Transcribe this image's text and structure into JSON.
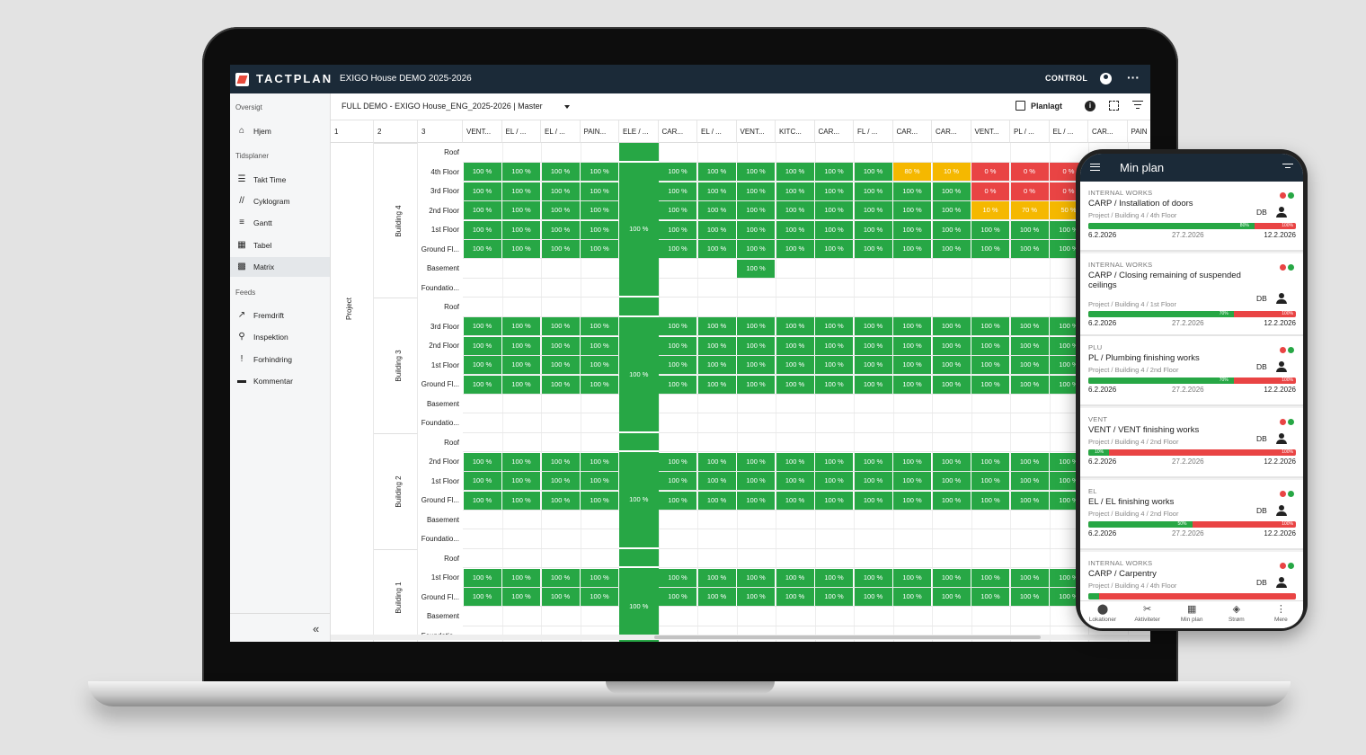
{
  "app": {
    "brand": "TACTPLAN",
    "project_title": "EXIGO House DEMO 2025-2026",
    "control_label": "CONTROL",
    "view_title": "FULL DEMO - EXIGO House_ENG_2025-2026  |  Master",
    "planlagt_label": "Planlagt"
  },
  "sidebar": {
    "sections": [
      {
        "title": "Oversigt",
        "items": [
          {
            "label": "Hjem",
            "icon": "home-icon"
          }
        ]
      },
      {
        "title": "Tidsplaner",
        "items": [
          {
            "label": "Takt Time",
            "icon": "takt-time-icon"
          },
          {
            "label": "Cyklogram",
            "icon": "cyclogram-icon"
          },
          {
            "label": "Gantt",
            "icon": "gantt-icon"
          },
          {
            "label": "Tabel",
            "icon": "table-icon"
          },
          {
            "label": "Matrix",
            "icon": "matrix-icon",
            "active": true
          }
        ]
      },
      {
        "title": "Feeds",
        "items": [
          {
            "label": "Fremdrift",
            "icon": "trend-icon"
          },
          {
            "label": "Inspektion",
            "icon": "search-icon"
          },
          {
            "label": "Forhindring",
            "icon": "exclamation-icon"
          },
          {
            "label": "Kommentar",
            "icon": "comment-icon"
          }
        ]
      }
    ]
  },
  "matrix": {
    "level_headers": [
      "1",
      "2",
      "3"
    ],
    "activity_headers": [
      "VENT...",
      "EL / ...",
      "EL / ...",
      "PAIN...",
      "ELE / ...",
      "CAR...",
      "EL / ...",
      "VENT...",
      "KITC...",
      "CAR...",
      "FL / ...",
      "CAR...",
      "CAR...",
      "VENT...",
      "PL / ...",
      "EL / ...",
      "CAR...",
      "PAIN"
    ],
    "project_label": "Project",
    "merged_value": "100 %",
    "colors": {
      "green": "#27a745",
      "red": "#e94444",
      "yellow": "#f5b800"
    },
    "buildings": [
      {
        "name": "Building 4",
        "floors": [
          {
            "name": "Roof",
            "cells": []
          },
          {
            "name": "4th Floor",
            "cells": [
              "100 %",
              "100 %",
              "100 %",
              "100 %",
              "",
              "100 %",
              "100 %",
              "100 %",
              "100 %",
              "100 %",
              "100 %",
              "80 %",
              "10 %",
              "0 %",
              "0 %",
              "0 %"
            ],
            "states": [
              "g",
              "g",
              "g",
              "g",
              "",
              "g",
              "g",
              "g",
              "g",
              "g",
              "g",
              "y",
              "y",
              "r",
              "r",
              "r"
            ]
          },
          {
            "name": "3rd Floor",
            "cells": [
              "100 %",
              "100 %",
              "100 %",
              "100 %",
              "",
              "100 %",
              "100 %",
              "100 %",
              "100 %",
              "100 %",
              "100 %",
              "100 %",
              "100 %",
              "0 %",
              "0 %",
              "0 %"
            ],
            "states": [
              "g",
              "g",
              "g",
              "g",
              "",
              "g",
              "g",
              "g",
              "g",
              "g",
              "g",
              "g",
              "g",
              "r",
              "r",
              "r"
            ]
          },
          {
            "name": "2nd Floor",
            "cells": [
              "100 %",
              "100 %",
              "100 %",
              "100 %",
              "",
              "100 %",
              "100 %",
              "100 %",
              "100 %",
              "100 %",
              "100 %",
              "100 %",
              "100 %",
              "10 %",
              "70 %",
              "50 %"
            ],
            "states": [
              "g",
              "g",
              "g",
              "g",
              "",
              "g",
              "g",
              "g",
              "g",
              "g",
              "g",
              "g",
              "g",
              "y",
              "y",
              "y"
            ]
          },
          {
            "name": "1st Floor",
            "cells": [
              "100 %",
              "100 %",
              "100 %",
              "100 %",
              "",
              "100 %",
              "100 %",
              "100 %",
              "100 %",
              "100 %",
              "100 %",
              "100 %",
              "100 %",
              "100 %",
              "100 %",
              "100 %"
            ],
            "states": [
              "g",
              "g",
              "g",
              "g",
              "",
              "g",
              "g",
              "g",
              "g",
              "g",
              "g",
              "g",
              "g",
              "g",
              "g",
              "g"
            ]
          },
          {
            "name": "Ground Fl...",
            "cells": [
              "100 %",
              "100 %",
              "100 %",
              "100 %",
              "",
              "100 %",
              "100 %",
              "100 %",
              "100 %",
              "100 %",
              "100 %",
              "100 %",
              "100 %",
              "100 %",
              "100 %",
              "100 %"
            ],
            "states": [
              "g",
              "g",
              "g",
              "g",
              "",
              "g",
              "g",
              "g",
              "g",
              "g",
              "g",
              "g",
              "g",
              "g",
              "g",
              "g"
            ]
          },
          {
            "name": "Basement",
            "cells": [
              "",
              "",
              "",
              "",
              "",
              "",
              "",
              "100 %"
            ],
            "states": [
              "",
              "",
              "",
              "",
              "",
              "",
              "",
              "g"
            ]
          },
          {
            "name": "Foundatio...",
            "cells": []
          }
        ]
      },
      {
        "name": "Building 3",
        "floors": [
          {
            "name": "Roof",
            "cells": []
          },
          {
            "name": "3rd Floor",
            "cells": [
              "100 %",
              "100 %",
              "100 %",
              "100 %",
              "",
              "100 %",
              "100 %",
              "100 %",
              "100 %",
              "100 %",
              "100 %",
              "100 %",
              "100 %",
              "100 %",
              "100 %",
              "100 %"
            ],
            "states": [
              "g",
              "g",
              "g",
              "g",
              "",
              "g",
              "g",
              "g",
              "g",
              "g",
              "g",
              "g",
              "g",
              "g",
              "g",
              "g"
            ]
          },
          {
            "name": "2nd Floor",
            "cells": [
              "100 %",
              "100 %",
              "100 %",
              "100 %",
              "",
              "100 %",
              "100 %",
              "100 %",
              "100 %",
              "100 %",
              "100 %",
              "100 %",
              "100 %",
              "100 %",
              "100 %",
              "100 %"
            ],
            "states": [
              "g",
              "g",
              "g",
              "g",
              "",
              "g",
              "g",
              "g",
              "g",
              "g",
              "g",
              "g",
              "g",
              "g",
              "g",
              "g"
            ]
          },
          {
            "name": "1st Floor",
            "cells": [
              "100 %",
              "100 %",
              "100 %",
              "100 %",
              "",
              "100 %",
              "100 %",
              "100 %",
              "100 %",
              "100 %",
              "100 %",
              "100 %",
              "100 %",
              "100 %",
              "100 %",
              "100 %"
            ],
            "states": [
              "g",
              "g",
              "g",
              "g",
              "",
              "g",
              "g",
              "g",
              "g",
              "g",
              "g",
              "g",
              "g",
              "g",
              "g",
              "g"
            ]
          },
          {
            "name": "Ground Fl...",
            "cells": [
              "100 %",
              "100 %",
              "100 %",
              "100 %",
              "",
              "100 %",
              "100 %",
              "100 %",
              "100 %",
              "100 %",
              "100 %",
              "100 %",
              "100 %",
              "100 %",
              "100 %",
              "100 %"
            ],
            "states": [
              "g",
              "g",
              "g",
              "g",
              "",
              "g",
              "g",
              "g",
              "g",
              "g",
              "g",
              "g",
              "g",
              "g",
              "g",
              "g"
            ]
          },
          {
            "name": "Basement",
            "cells": []
          },
          {
            "name": "Foundatio...",
            "cells": []
          }
        ]
      },
      {
        "name": "Building 2",
        "floors": [
          {
            "name": "Roof",
            "cells": []
          },
          {
            "name": "2nd Floor",
            "cells": [
              "100 %",
              "100 %",
              "100 %",
              "100 %",
              "",
              "100 %",
              "100 %",
              "100 %",
              "100 %",
              "100 %",
              "100 %",
              "100 %",
              "100 %",
              "100 %",
              "100 %",
              "100 %"
            ],
            "states": [
              "g",
              "g",
              "g",
              "g",
              "",
              "g",
              "g",
              "g",
              "g",
              "g",
              "g",
              "g",
              "g",
              "g",
              "g",
              "g"
            ]
          },
          {
            "name": "1st Floor",
            "cells": [
              "100 %",
              "100 %",
              "100 %",
              "100 %",
              "",
              "100 %",
              "100 %",
              "100 %",
              "100 %",
              "100 %",
              "100 %",
              "100 %",
              "100 %",
              "100 %",
              "100 %",
              "100 %"
            ],
            "states": [
              "g",
              "g",
              "g",
              "g",
              "",
              "g",
              "g",
              "g",
              "g",
              "g",
              "g",
              "g",
              "g",
              "g",
              "g",
              "g"
            ]
          },
          {
            "name": "Ground Fl...",
            "cells": [
              "100 %",
              "100 %",
              "100 %",
              "100 %",
              "",
              "100 %",
              "100 %",
              "100 %",
              "100 %",
              "100 %",
              "100 %",
              "100 %",
              "100 %",
              "100 %",
              "100 %",
              "100 %"
            ],
            "states": [
              "g",
              "g",
              "g",
              "g",
              "",
              "g",
              "g",
              "g",
              "g",
              "g",
              "g",
              "g",
              "g",
              "g",
              "g",
              "g"
            ]
          },
          {
            "name": "Basement",
            "cells": []
          },
          {
            "name": "Foundatio...",
            "cells": []
          }
        ]
      },
      {
        "name": "Building 1",
        "floors": [
          {
            "name": "Roof",
            "cells": []
          },
          {
            "name": "1st Floor",
            "cells": [
              "100 %",
              "100 %",
              "100 %",
              "100 %",
              "",
              "100 %",
              "100 %",
              "100 %",
              "100 %",
              "100 %",
              "100 %",
              "100 %",
              "100 %",
              "100 %",
              "100 %",
              "100 %"
            ],
            "states": [
              "g",
              "g",
              "g",
              "g",
              "",
              "g",
              "g",
              "g",
              "g",
              "g",
              "g",
              "g",
              "g",
              "g",
              "g",
              "g"
            ]
          },
          {
            "name": "Ground Fl...",
            "cells": [
              "100 %",
              "100 %",
              "100 %",
              "100 %",
              "",
              "100 %",
              "100 %",
              "100 %",
              "100 %",
              "100 %",
              "100 %",
              "100 %",
              "100 %",
              "100 %",
              "100 %",
              "100 %"
            ],
            "states": [
              "g",
              "g",
              "g",
              "g",
              "",
              "g",
              "g",
              "g",
              "g",
              "g",
              "g",
              "g",
              "g",
              "g",
              "g",
              "g"
            ]
          },
          {
            "name": "Basement",
            "cells": []
          },
          {
            "name": "Foundatio...",
            "cells": []
          }
        ]
      }
    ]
  },
  "phone": {
    "title": "Min plan",
    "cards": [
      {
        "category": "INTERNAL WORKS",
        "title": "CARP / Installation of doors",
        "path": "Project / Building 4 / 4th Floor",
        "assignee": "DB",
        "progress": 0.8,
        "progress_label": "80%",
        "planned_label": "100%",
        "start": "6.2.2026",
        "mid": "27.2.2026",
        "end": "12.2.2026"
      },
      {
        "category": "INTERNAL WORKS",
        "title": "CARP / Closing remaining of suspended ceilings",
        "path": "Project / Building 4 / 1st Floor",
        "assignee": "DB",
        "progress": 0.7,
        "progress_label": "70%",
        "planned_label": "100%",
        "start": "6.2.2026",
        "mid": "27.2.2026",
        "end": "12.2.2026"
      },
      {
        "category": "PLU",
        "title": "PL / Plumbing finishing works",
        "path": "Project / Building 4 / 2nd Floor",
        "assignee": "DB",
        "progress": 0.7,
        "progress_label": "70%",
        "planned_label": "100%",
        "start": "6.2.2026",
        "mid": "27.2.2026",
        "end": "12.2.2026"
      },
      {
        "category": "VENT",
        "title": "VENT / VENT finishing works",
        "path": "Project / Building 4 / 2nd Floor",
        "assignee": "DB",
        "progress": 0.1,
        "progress_label": "10%",
        "planned_label": "100%",
        "start": "6.2.2026",
        "mid": "27.2.2026",
        "end": "12.2.2026"
      },
      {
        "category": "EL",
        "title": "EL / EL finishing works",
        "path": "Project / Building 4 / 2nd Floor",
        "assignee": "DB",
        "progress": 0.5,
        "progress_label": "50%",
        "planned_label": "100%",
        "start": "6.2.2026",
        "mid": "27.2.2026",
        "end": "12.2.2026"
      },
      {
        "category": "INTERNAL WORKS",
        "title": "CARP / Carpentry",
        "path": "Project / Building 4 / 4th Floor",
        "assignee": "DB",
        "progress": 0.05,
        "progress_label": "",
        "planned_label": "",
        "start": "",
        "mid": "",
        "end": ""
      }
    ],
    "nav": [
      {
        "label": "Lokationer",
        "icon": "pin-icon"
      },
      {
        "label": "Aktiviteter",
        "icon": "tools-icon"
      },
      {
        "label": "Min plan",
        "icon": "calendar-icon"
      },
      {
        "label": "Strøm",
        "icon": "layers-icon"
      },
      {
        "label": "Mere",
        "icon": "more-vertical-icon"
      }
    ]
  }
}
